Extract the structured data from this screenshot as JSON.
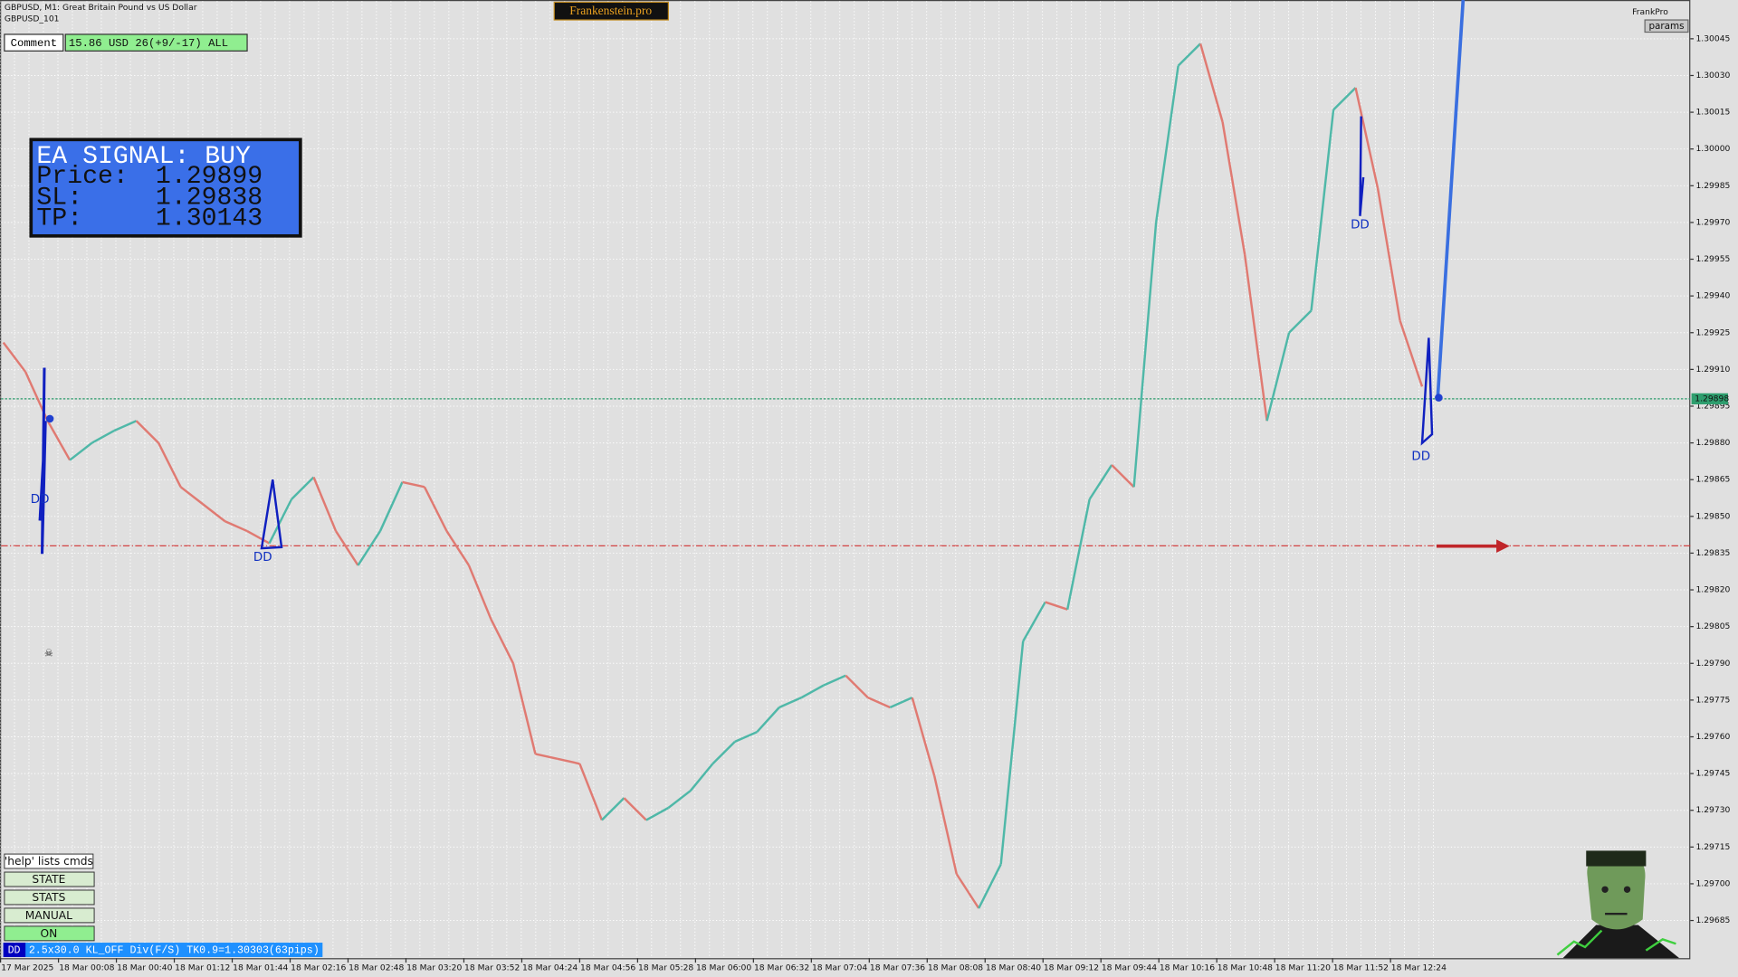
{
  "header": {
    "symbol": "GBPUSD, M1:  Great Britain Pound vs US Dollar",
    "template": "GBPUSD_101",
    "brand": "Frankenstein.pro",
    "profile": "FrankPro",
    "params_button": "params"
  },
  "comment": {
    "button": "Comment",
    "status": "15.86 USD 26(+9/-17) ALL"
  },
  "signal": {
    "title": "EA SIGNAL: BUY",
    "rows": [
      {
        "label": "Price:",
        "value": 1.29899
      },
      {
        "label": "SL:",
        "value": 1.29838
      },
      {
        "label": "TP:",
        "value": 1.30143
      }
    ]
  },
  "markers": [
    "DD",
    "DD",
    "DD",
    "DD"
  ],
  "buttons": [
    "'help' lists cmds",
    "STATE",
    "STATS",
    "MANUAL",
    "ON"
  ],
  "status_bar": {
    "tag": "DD",
    "text": "2.5x30.0 KL_OFF Div(F/S) TK0.9=1.30303(63pips)"
  },
  "price_axis": {
    "ticks": [
      1.30045,
      {
        "value": 1.3003,
        "label": "1.30030"
      },
      1.30015,
      {
        "value": 1.3,
        "label": "1.30000"
      },
      1.29985,
      {
        "value": 1.2997,
        "label": "1.29970"
      },
      1.29955,
      {
        "value": 1.2994,
        "label": "1.29940"
      },
      1.29925,
      {
        "value": 1.2991,
        "label": "1.29910"
      },
      1.29895,
      {
        "value": 1.2988,
        "label": "1.29880"
      },
      1.29865,
      {
        "value": 1.2985,
        "label": "1.29850"
      },
      1.29835,
      {
        "value": 1.2982,
        "label": "1.29820"
      },
      1.29805,
      {
        "value": 1.2979,
        "label": "1.29790"
      },
      1.29775,
      {
        "value": 1.2976,
        "label": "1.29760"
      },
      1.29745,
      {
        "value": 1.2973,
        "label": "1.29730"
      },
      1.29715,
      {
        "value": 1.297,
        "label": "1.29700"
      },
      1.29685
    ],
    "current": 1.29898
  },
  "time_axis": [
    "17 Mar 2025",
    "18 Mar 00:08",
    "18 Mar 00:40",
    "18 Mar 01:12",
    "18 Mar 01:44",
    "18 Mar 02:16",
    "18 Mar 02:48",
    "18 Mar 03:20",
    "18 Mar 03:52",
    "18 Mar 04:24",
    "18 Mar 04:56",
    "18 Mar 05:28",
    "18 Mar 06:00",
    "18 Mar 06:32",
    "18 Mar 07:04",
    "18 Mar 07:36",
    "18 Mar 08:08",
    "18 Mar 08:40",
    "18 Mar 09:12",
    "18 Mar 09:44",
    "18 Mar 10:16",
    "18 Mar 10:48",
    "18 Mar 11:20",
    "18 Mar 11:52",
    "18 Mar 12:24"
  ],
  "price_path": [
    1.29921,
    1.29909,
    1.29889,
    1.29873,
    1.2988,
    1.29885,
    1.29889,
    1.2988,
    1.29862,
    1.29855,
    1.29848,
    1.29844,
    1.29839,
    1.29857,
    1.29866,
    1.29844,
    1.2983,
    1.29844,
    1.29864,
    1.29862,
    1.29844,
    1.2983,
    1.29808,
    1.2979,
    1.29753,
    1.29751,
    1.29749,
    1.29726,
    1.29735,
    1.29726,
    1.29731,
    1.29738,
    1.29749,
    1.29758,
    1.29762,
    1.29772,
    1.29776,
    1.29781,
    1.29785,
    1.29776,
    1.29772,
    1.29776,
    1.29744,
    1.29704,
    1.2969,
    1.29708,
    1.29799,
    1.29815,
    1.29812,
    1.29857,
    1.29871,
    1.29862,
    1.2997,
    1.30034,
    1.30043,
    1.30011,
    1.29957,
    1.29889,
    1.29925,
    1.29934,
    1.30016,
    1.30025,
    1.29984,
    1.2993,
    1.29903
  ]
}
